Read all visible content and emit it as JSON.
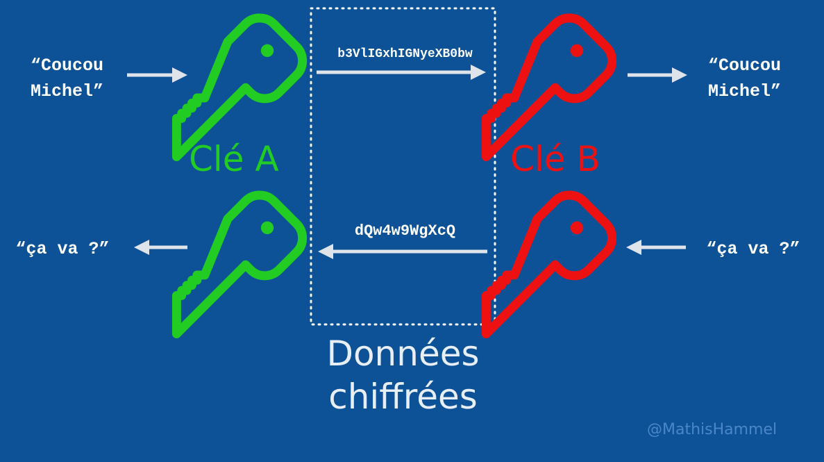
{
  "colors": {
    "background": "#0d5296",
    "key_a": "#22cc22",
    "key_b": "#ee1111",
    "arrow": "#dfe3ea",
    "text": "#ffffff",
    "data_box": "#ffffff",
    "handle": "#4a86c8"
  },
  "icons": [
    "key-icon",
    "arrow-right-icon",
    "arrow-left-icon"
  ],
  "messages": {
    "left_outgoing": "“Coucou\nMichel”",
    "right_incoming": "“Coucou\nMichel”",
    "right_outgoing": "“ça va ?”",
    "left_incoming": "“ça va ?”"
  },
  "ciphertexts": {
    "top": "b3VlIGxhIGNyeXB0bw",
    "bottom": "dQw4w9WgXcQ"
  },
  "keys": {
    "a_label": "Clé A",
    "b_label": "Clé B"
  },
  "data_box_label": "Données\nchiffrées",
  "watermark": "@MathisHammel"
}
